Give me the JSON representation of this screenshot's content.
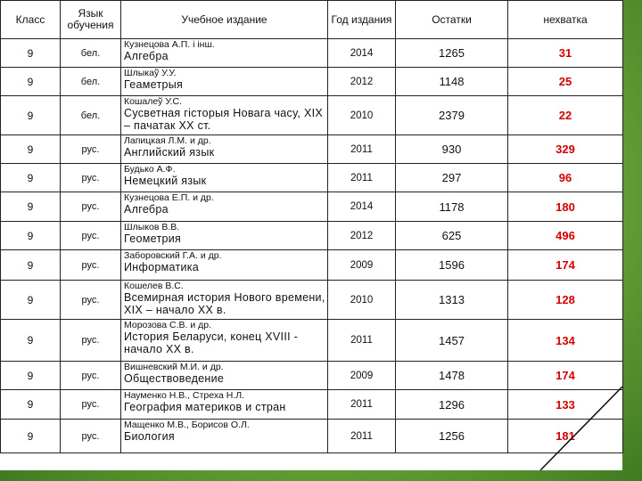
{
  "headers": {
    "klass": "Класс",
    "lang": "Язык обучения",
    "book": "Учебное издание",
    "year": "Год издания",
    "rest": "Остатки",
    "lack": "нехватка"
  },
  "rows": [
    {
      "klass": "9",
      "lang": "бел.",
      "author": "Кузнецова А.П. і інш.",
      "title": "Алгебра",
      "year": "2014",
      "rest": "1265",
      "lack": "31"
    },
    {
      "klass": "9",
      "lang": "бел.",
      "author": "Шлыкаў У.У.",
      "title": "Геаметрыя",
      "year": "2012",
      "rest": "1148",
      "lack": "25"
    },
    {
      "klass": "9",
      "lang": "бел.",
      "author": "Кошалеў У.С.",
      "title": "Сусветная гісторыя Новага часу, XIX – пачатак XX ст.",
      "year": "2010",
      "rest": "2379",
      "lack": "22"
    },
    {
      "klass": "9",
      "lang": "рус.",
      "author": "Лапицкая Л.М. и др.",
      "title": "Английский язык",
      "year": "2011",
      "rest": "930",
      "lack": "329"
    },
    {
      "klass": "9",
      "lang": "рус.",
      "author": "Будько А.Ф.",
      "title": "Немецкий язык",
      "year": "2011",
      "rest": "297",
      "lack": "96"
    },
    {
      "klass": "9",
      "lang": "рус.",
      "author": "Кузнецова Е.П. и др.",
      "title": "Алгебра",
      "year": "2014",
      "rest": "1178",
      "lack": "180"
    },
    {
      "klass": "9",
      "lang": "рус.",
      "author": "Шлыков В.В.",
      "title": "Геометрия",
      "year": "2012",
      "rest": "625",
      "lack": "496"
    },
    {
      "klass": "9",
      "lang": "рус.",
      "author": "Заборовский Г.А. и др.",
      "title": "Информатика",
      "year": "2009",
      "rest": "1596",
      "lack": "174"
    },
    {
      "klass": "9",
      "lang": "рус.",
      "author": "Кошелев В.С.",
      "title": "Всемирная история Нового времени, XIX – начало XX в.",
      "year": "2010",
      "rest": "1313",
      "lack": "128"
    },
    {
      "klass": "9",
      "lang": "рус.",
      "author": "Морозова С.В. и др.",
      "title": "История Беларуси, конец XVIII - начало XX в.",
      "year": "2011",
      "rest": "1457",
      "lack": "134"
    },
    {
      "klass": "9",
      "lang": "рус.",
      "author": "Вишневский М.И. и др.",
      "title": "Обществоведение",
      "year": "2009",
      "rest": "1478",
      "lack": "174"
    },
    {
      "klass": "9",
      "lang": "рус.",
      "author": "Науменко Н.В., Стреха Н.Л.",
      "title": "География материков и стран",
      "year": "2011",
      "rest": "1296",
      "lack": "133"
    },
    {
      "klass": "9",
      "lang": "рус.",
      "author": "Мащенко М.В., Борисов О.Л.",
      "title": "Биология",
      "year": "2011",
      "rest": "1256",
      "lack": "181"
    }
  ]
}
